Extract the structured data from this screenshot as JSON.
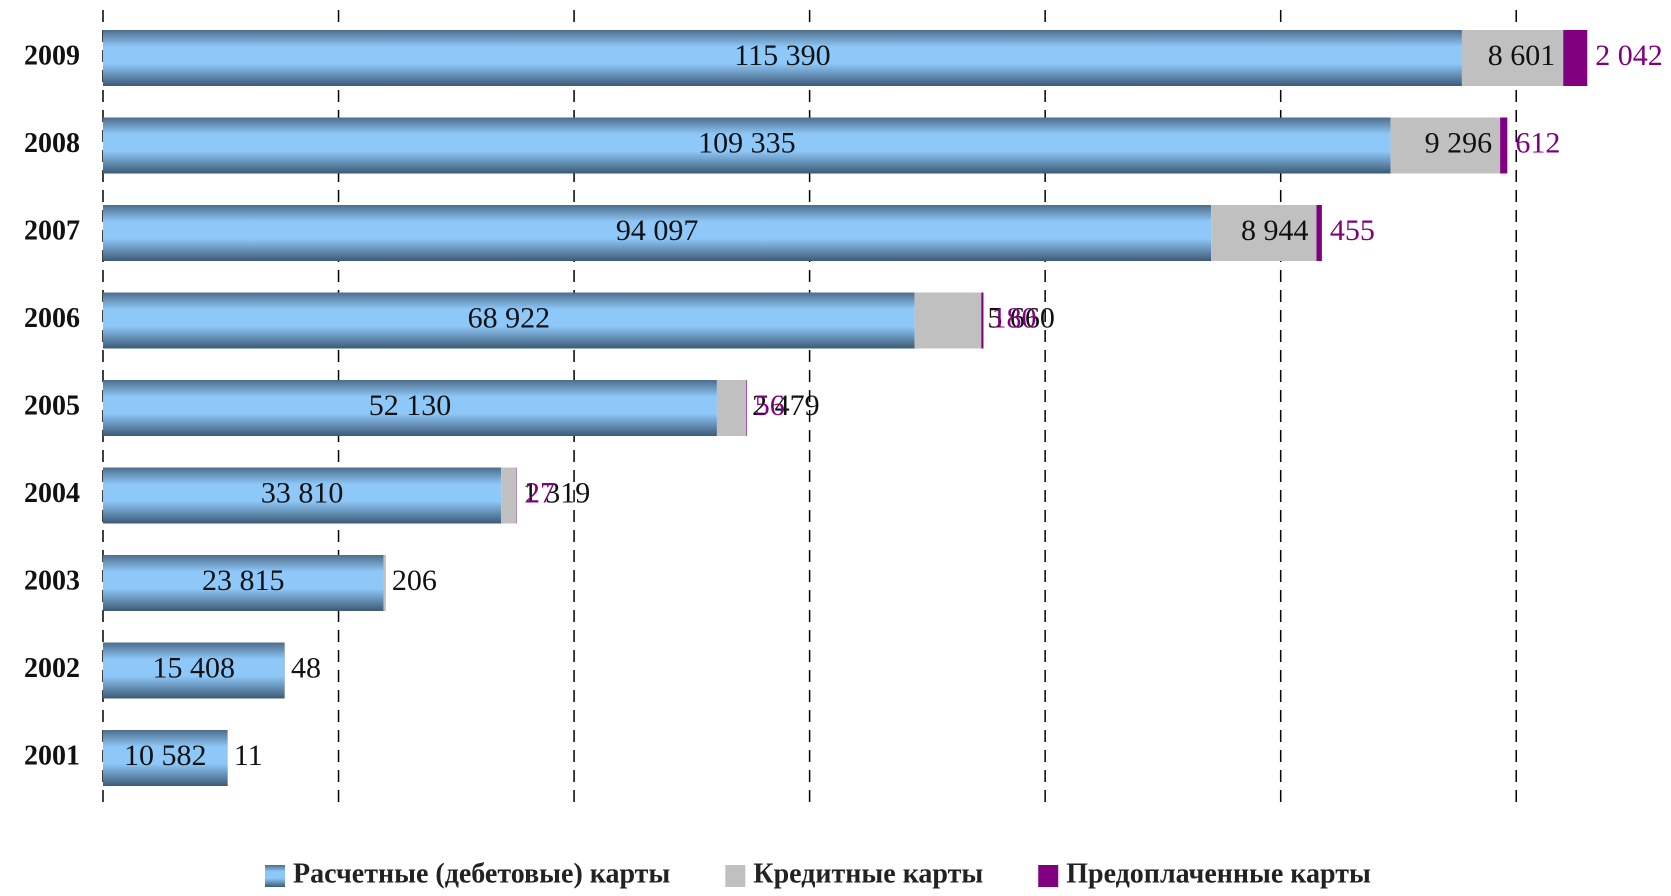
{
  "chart_data": {
    "type": "stacked-bar-horizontal",
    "categories": [
      "2009",
      "2008",
      "2007",
      "2006",
      "2005",
      "2004",
      "2003",
      "2002",
      "2001"
    ],
    "series": [
      {
        "name": "Расчетные (дебетовые) карты",
        "color": "#8ec8f8",
        "values": [
          115390,
          109335,
          94097,
          68922,
          52130,
          33810,
          23815,
          15408,
          10582
        ],
        "value_labels": [
          "115 390",
          "109 335",
          "94 097",
          "68 922",
          "52 130",
          "33 810",
          "23 815",
          "15 408",
          "10 582"
        ]
      },
      {
        "name": "Кредитные карты",
        "color": "#c0c0c0",
        "values": [
          8601,
          9296,
          8944,
          5660,
          2479,
          1319,
          206,
          48,
          11
        ],
        "value_labels": [
          "8 601",
          "9 296",
          "8 944",
          "5 660",
          "2 479",
          "1 319",
          "206",
          "48",
          "11"
        ]
      },
      {
        "name": "Предоплаченные карты",
        "color": "#800080",
        "values": [
          2042,
          612,
          455,
          180,
          56,
          27,
          null,
          null,
          null
        ],
        "value_labels": [
          "2 042",
          "612",
          "455",
          "180",
          "56",
          "27",
          null,
          null,
          null
        ]
      }
    ],
    "xlim": [
      0,
      130000
    ],
    "xticks": [
      0,
      20000,
      40000,
      60000,
      80000,
      100000,
      120000
    ],
    "grid": true
  }
}
